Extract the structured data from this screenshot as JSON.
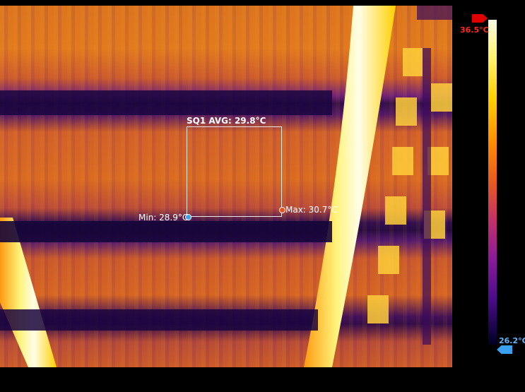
{
  "scale": {
    "max_label": "36.5°C",
    "min_label": "26.2°C"
  },
  "measurement": {
    "box_label": "SQ1 AVG: 29.8°C",
    "min_label": "Min: 28.9°C",
    "max_label": "Max: 30.7°C"
  },
  "colors": {
    "max_marker": "#e00000",
    "min_marker": "#3aa0f0"
  }
}
